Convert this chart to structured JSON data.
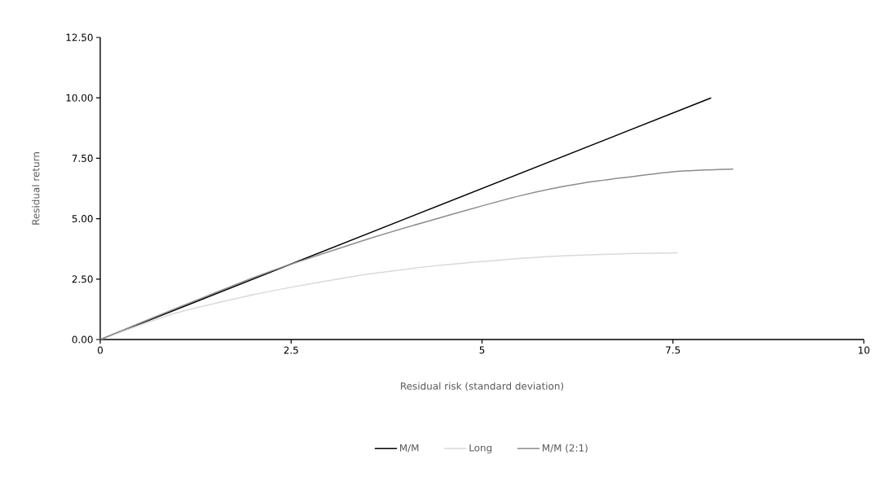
{
  "chart_data": {
    "type": "line",
    "xlabel": "Residual risk (standard deviation)",
    "ylabel": "Residual return",
    "xlim": [
      0,
      10
    ],
    "xticks": [
      0,
      2.5,
      5,
      7.5,
      10
    ],
    "ylim": [
      0,
      12.5
    ],
    "yticks": [
      {
        "value": 0,
        "label": "0.00"
      },
      {
        "value": 2.5,
        "label": "2.50"
      },
      {
        "value": 5,
        "label": "5.00"
      },
      {
        "value": 7.5,
        "label": "7.50"
      },
      {
        "value": 10,
        "label": "10.00"
      },
      {
        "value": 12.5,
        "label": "12.50"
      }
    ],
    "legend": "bottom",
    "series": [
      {
        "name": "M/M",
        "color": "#000000",
        "x": [
          0,
          8.0
        ],
        "values": [
          0,
          10.0
        ]
      },
      {
        "name": "Long",
        "color": "#d9d9d9",
        "x": [
          0,
          1,
          2,
          2.5,
          3.5,
          4.44,
          5.2,
          6,
          7,
          7.56
        ],
        "values": [
          0,
          1.1,
          1.85,
          2.16,
          2.7,
          3.07,
          3.28,
          3.45,
          3.56,
          3.59
        ]
      },
      {
        "name": "M/M (2:1)",
        "color": "#8c8c8c",
        "x": [
          0,
          1,
          2,
          2.5,
          3.5,
          4.44,
          5.5,
          6.3,
          7.5,
          8.29
        ],
        "values": [
          0,
          1.3,
          2.55,
          3.12,
          4.15,
          5.03,
          5.95,
          6.46,
          6.94,
          7.05
        ]
      }
    ]
  }
}
